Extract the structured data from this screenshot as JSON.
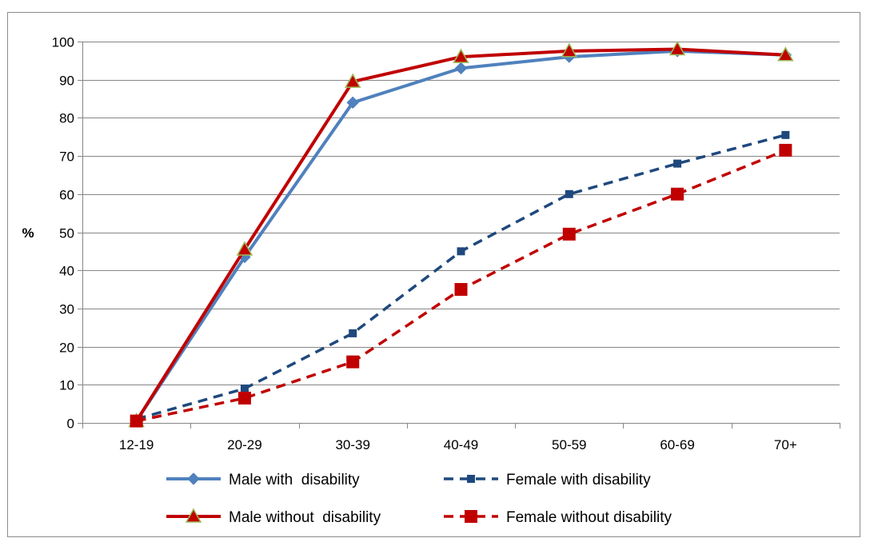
{
  "chart_data": {
    "type": "line",
    "ylabel": "%",
    "xlabel": "",
    "ylim": [
      0,
      100
    ],
    "yticks": [
      0,
      10,
      20,
      30,
      40,
      50,
      60,
      70,
      80,
      90,
      100
    ],
    "categories": [
      "12-19",
      "20-29",
      "30-39",
      "40-49",
      "50-59",
      "60-69",
      "70+"
    ],
    "grid": "horizontal",
    "legend_position": "bottom",
    "series": [
      {
        "name": "Male with  disability",
        "values": [
          0.5,
          43.5,
          84,
          93,
          96,
          97.5,
          96.5
        ],
        "color": "#4F81BD",
        "line": "solid",
        "marker": "diamond"
      },
      {
        "name": "Female with disability",
        "values": [
          1,
          9,
          23.5,
          45,
          60,
          68,
          75.5
        ],
        "color": "#1F497D",
        "line": "dashed",
        "marker": "square-small"
      },
      {
        "name": "Male without  disability",
        "values": [
          0.5,
          45.5,
          89.5,
          96,
          97.5,
          98,
          96.5
        ],
        "color": "#C00000",
        "line": "solid",
        "marker": "triangle"
      },
      {
        "name": "Female without disability",
        "values": [
          0.5,
          6.5,
          16,
          35,
          49.5,
          60,
          71.5
        ],
        "color": "#C00000",
        "line": "dashed",
        "marker": "square"
      }
    ]
  }
}
